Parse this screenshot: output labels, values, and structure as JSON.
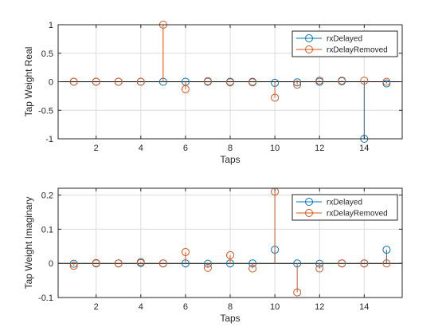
{
  "chart_data": [
    {
      "type": "stem",
      "xlabel": "Taps",
      "ylabel": "Tap Weight Real",
      "xlim": [
        0.3,
        15.7
      ],
      "ylim": [
        -1,
        1
      ],
      "xticks": [
        2,
        4,
        6,
        8,
        10,
        12,
        14
      ],
      "yticks": [
        -1,
        -0.5,
        0,
        0.5,
        1
      ],
      "ytick_labels": [
        "-1",
        "-0.5",
        "0",
        "0.5",
        "1"
      ],
      "grid": true,
      "legend_position": "top-right",
      "x": [
        1,
        2,
        3,
        4,
        5,
        6,
        7,
        8,
        9,
        10,
        11,
        12,
        13,
        14,
        15
      ],
      "series": [
        {
          "name": "rxDelayed",
          "color": "#0072BD",
          "values": [
            0,
            0,
            0,
            0,
            0,
            0,
            0,
            0,
            0,
            -0.02,
            -0.01,
            0,
            0.01,
            -1,
            -0.03
          ]
        },
        {
          "name": "rxDelayRemoved",
          "color": "#D95319",
          "values": [
            0,
            0,
            0,
            0,
            1,
            -0.13,
            0.01,
            -0.01,
            -0.01,
            -0.28,
            -0.05,
            0.02,
            0.02,
            0.02,
            0
          ]
        }
      ]
    },
    {
      "type": "stem",
      "xlabel": "Taps",
      "ylabel": "Tap Weight Imaginary",
      "xlim": [
        0.3,
        15.7
      ],
      "ylim": [
        -0.1,
        0.22
      ],
      "xticks": [
        2,
        4,
        6,
        8,
        10,
        12,
        14
      ],
      "yticks": [
        -0.1,
        0,
        0.1,
        0.2
      ],
      "ytick_labels": [
        "-0.1",
        "0",
        "0.1",
        "0.2"
      ],
      "grid": true,
      "legend_position": "top-right",
      "x": [
        1,
        2,
        3,
        4,
        5,
        6,
        7,
        8,
        9,
        10,
        11,
        12,
        13,
        14,
        15
      ],
      "series": [
        {
          "name": "rxDelayed",
          "color": "#0072BD",
          "values": [
            -0.001,
            0,
            0,
            0.001,
            0,
            0,
            -0.001,
            0,
            0,
            0.04,
            0,
            -0.001,
            0,
            0,
            0.04
          ]
        },
        {
          "name": "rxDelayRemoved",
          "color": "#D95319",
          "values": [
            -0.007,
            0.001,
            0,
            0.004,
            0,
            0.033,
            -0.013,
            0.024,
            -0.015,
            0.21,
            -0.085,
            -0.015,
            0,
            0,
            0
          ]
        }
      ]
    }
  ]
}
